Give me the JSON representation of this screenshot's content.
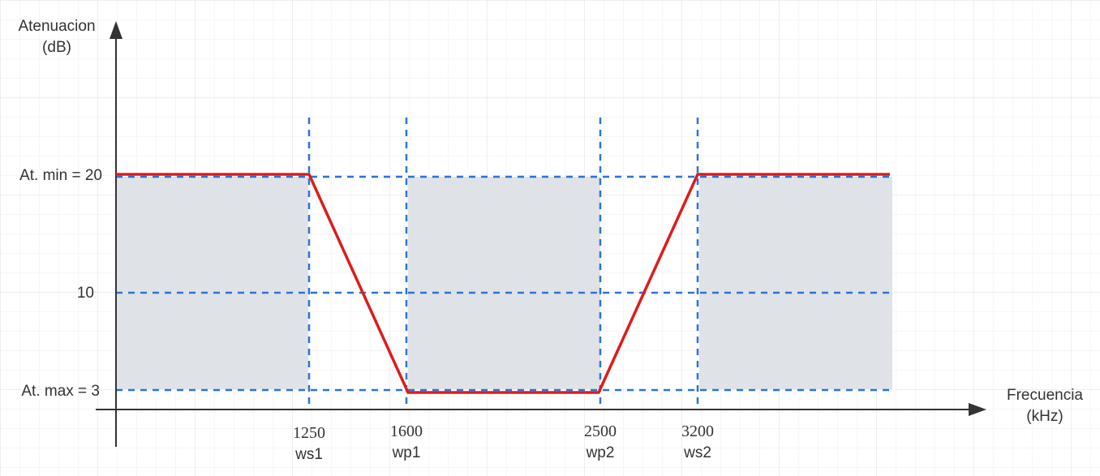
{
  "diagram": {
    "y_axis_label": [
      "Atenuacion",
      "(dB)"
    ],
    "x_axis_label": [
      "Frecuencia",
      "(kHz)"
    ],
    "y_levels": [
      {
        "label": "At. min = 20",
        "value": 20
      },
      {
        "label": "10",
        "value": 10
      },
      {
        "label": "At. max = 3",
        "value": 3
      }
    ],
    "x_marks": [
      {
        "value": "1250",
        "name": "ws1"
      },
      {
        "value": "1600",
        "name": "wp1"
      },
      {
        "value": "2500",
        "name": "wp2"
      },
      {
        "value": "3200",
        "name": "ws2"
      }
    ],
    "colors": {
      "response": "#dd1c1c",
      "guide": "#2b74d6",
      "region": "#dfe2e7",
      "axis": "#333333",
      "grid": "#ebebeb"
    }
  }
}
